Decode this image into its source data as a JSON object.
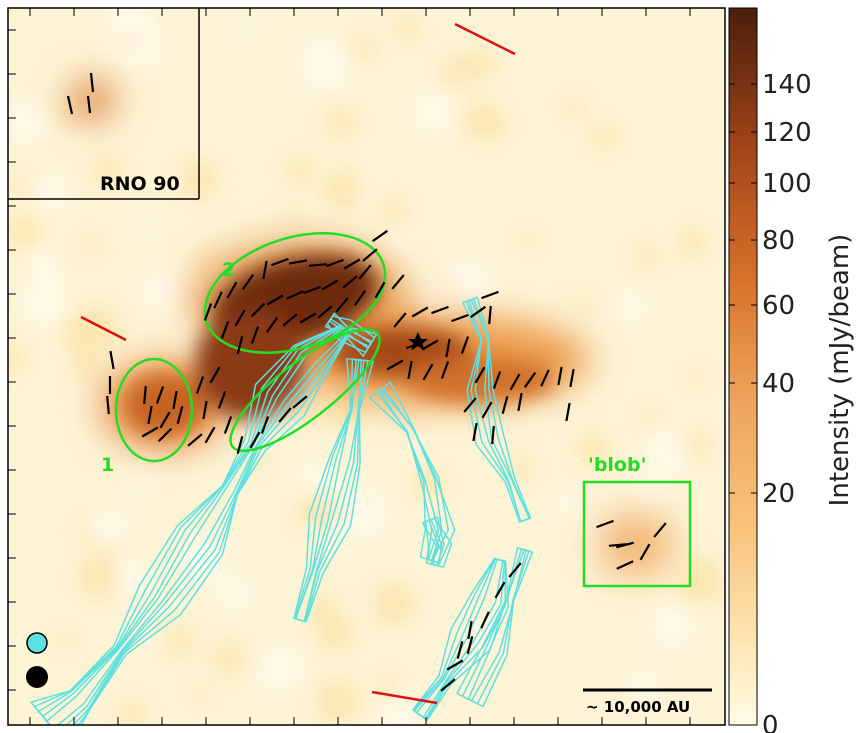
{
  "chart_data": {
    "type": "heatmap",
    "title": "",
    "colorbar": {
      "label": "Intensity (mJy/beam)",
      "ticks": [
        0,
        20,
        40,
        60,
        80,
        100,
        120,
        140
      ],
      "range": [
        0,
        150
      ],
      "scale": "nonlinear (stretched toward low values)",
      "colormap": [
        "#fffbe6",
        "#fde9b8",
        "#f8c27a",
        "#e98a3c",
        "#c95f1c",
        "#8b3a12",
        "#4a1f0c"
      ]
    },
    "labels": {
      "inset": "RNO 90",
      "region_1": "1",
      "region_2": "2",
      "blob": "'blob'",
      "scale_bar": "~ 10,000 AU"
    },
    "colors": {
      "contours": "#5fe0e0",
      "regions": "#22dd22",
      "vectors": "#000000",
      "reference_lines": "#dd1111",
      "beam_contour": "#5fe0e0",
      "beam_dust": "#000000"
    },
    "legend": "none",
    "grid": false
  }
}
